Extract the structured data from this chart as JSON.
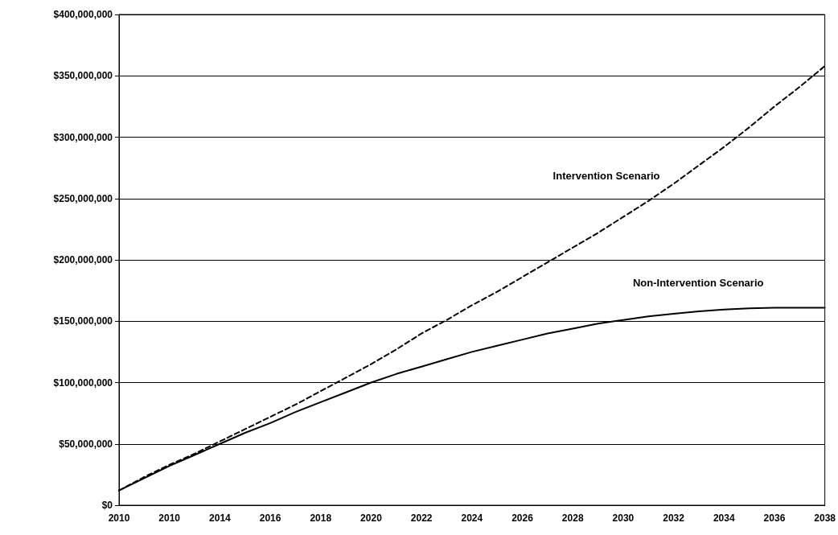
{
  "chart_data": {
    "type": "line",
    "categories": [
      "2010",
      null,
      "2010",
      null,
      "2014",
      null,
      "2016",
      null,
      "2018",
      null,
      "2020",
      null,
      "2022",
      null,
      "2024",
      null,
      "2026",
      null,
      "2028",
      null,
      "2030",
      null,
      "2032",
      null,
      "2034",
      null,
      "2036",
      null,
      "2038"
    ],
    "series": [
      {
        "name": "Intervention Scenario",
        "color": "#000000",
        "line_style": "dashed",
        "values": [
          12000000,
          23000000,
          33000000,
          42000000,
          52000000,
          62000000,
          72000000,
          82000000,
          93000000,
          104000000,
          115000000,
          127000000,
          140000000,
          151000000,
          163000000,
          174000000,
          186000000,
          198000000,
          210000000,
          222000000,
          235000000,
          248000000,
          262000000,
          277000000,
          292000000,
          308000000,
          325000000,
          341000000,
          358000000
        ]
      },
      {
        "name": "Non-Intervention Scenario",
        "color": "#000000",
        "line_style": "solid",
        "values": [
          12000000,
          22000000,
          32000000,
          41000000,
          50000000,
          59000000,
          67000000,
          76000000,
          84000000,
          92000000,
          100000000,
          107000000,
          113000000,
          119000000,
          125000000,
          130000000,
          135000000,
          140000000,
          144000000,
          148000000,
          151000000,
          154000000,
          156000000,
          158000000,
          159500000,
          160500000,
          161000000,
          161000000,
          161000000
        ]
      }
    ],
    "ylim": [
      0,
      400000000
    ],
    "yticks": [
      {
        "value": 0,
        "label": "$0"
      },
      {
        "value": 50000000,
        "label": "$50,000,000"
      },
      {
        "value": 100000000,
        "label": "$100,000,000"
      },
      {
        "value": 150000000,
        "label": "$150,000,000"
      },
      {
        "value": 200000000,
        "label": "$200,000,000"
      },
      {
        "value": 250000000,
        "label": "$250,000,000"
      },
      {
        "value": 300000000,
        "label": "$300,000,000"
      },
      {
        "value": 350000000,
        "label": "$350,000,000"
      },
      {
        "value": 400000000,
        "label": "$400,000,000"
      }
    ],
    "grid": "y",
    "legend": false,
    "marker": "none"
  }
}
